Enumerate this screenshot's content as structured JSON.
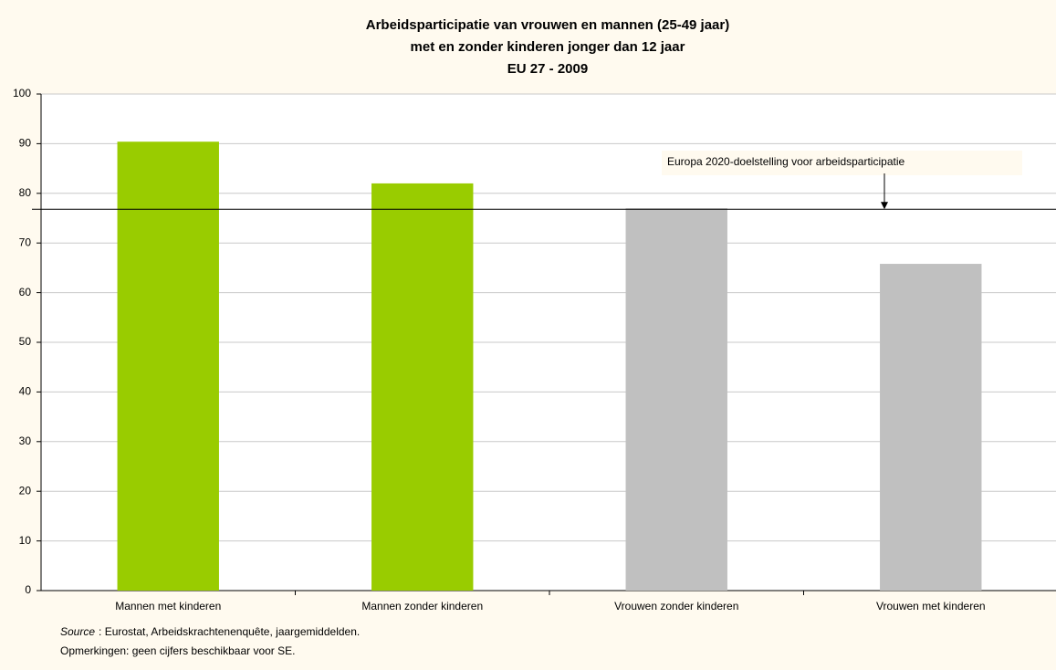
{
  "chart_data": {
    "type": "bar",
    "title": [
      "Arbeidsparticipatie van vrouwen en mannen (25-49 jaar)",
      "met en zonder kinderen jonger dan 12 jaar",
      "EU 27 - 2009"
    ],
    "categories": [
      "Mannen met kinderen",
      "Mannen zonder kinderen",
      "Vrouwen zonder kinderen",
      "Vrouwen met kinderen"
    ],
    "values": [
      90.4,
      82,
      77,
      65.8
    ],
    "colors": [
      "#99cc00",
      "#99cc00",
      "#c0c0c0",
      "#c0c0c0"
    ],
    "ylim": [
      0,
      100
    ],
    "yticks": [
      0,
      10,
      20,
      30,
      40,
      50,
      60,
      70,
      80,
      90,
      100
    ],
    "grid": true,
    "reference_line": {
      "value": 76.8,
      "label": "Europa 2020-doelstelling voor arbeidsparticipatie"
    },
    "source_label": "Source",
    "source_text": ": Eurostat, Arbeidskrachtenenquête, jaargemiddelden.",
    "notes": "Opmerkingen: geen cijfers beschikbaar voor SE."
  }
}
